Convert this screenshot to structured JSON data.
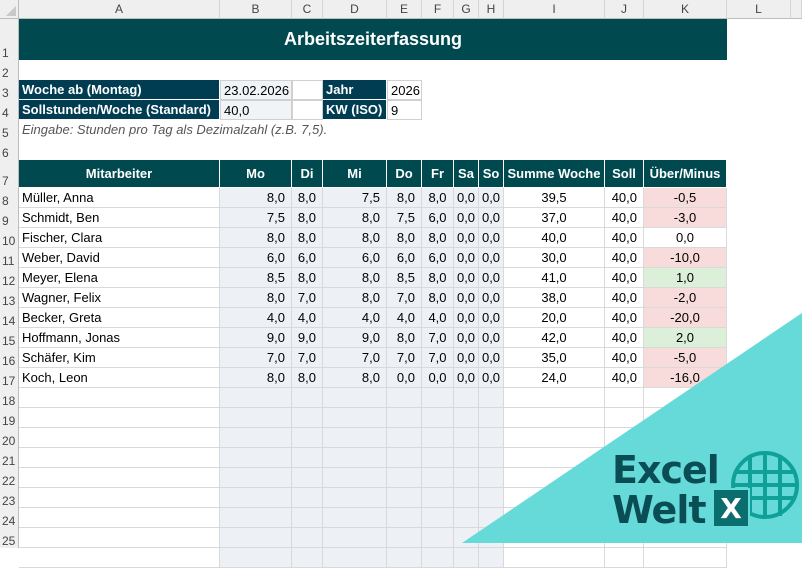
{
  "columns": [
    "A",
    "B",
    "C",
    "D",
    "E",
    "F",
    "G",
    "H",
    "I",
    "J",
    "K",
    "L"
  ],
  "rows": [
    "1",
    "2",
    "3",
    "4",
    "5",
    "6",
    "7",
    "8",
    "9",
    "10",
    "11",
    "12",
    "13",
    "14",
    "15",
    "16",
    "17",
    "18",
    "19",
    "20",
    "21",
    "22",
    "23",
    "24",
    "25"
  ],
  "title": "Arbeitszeiterfassung",
  "settings": {
    "week_label": "Woche ab (Montag)",
    "week_value": "23.02.2026",
    "target_label": "Sollstunden/Woche (Standard)",
    "target_value": "40,0",
    "year_label": "Jahr",
    "year_value": "2026",
    "kw_label": "KW (ISO)",
    "kw_value": "9"
  },
  "note": "Eingabe: Stunden pro Tag als Dezimalzahl (z.B. 7,5).",
  "table": {
    "headers": [
      "Mitarbeiter",
      "Mo",
      "Di",
      "Mi",
      "Do",
      "Fr",
      "Sa",
      "So",
      "Summe Woche",
      "Soll",
      "Über/Minus"
    ],
    "rows": [
      {
        "name": "Müller, Anna",
        "mo": "8,0",
        "di": "8,0",
        "mi": "7,5",
        "do": "8,0",
        "fr": "8,0",
        "sa": "0,0",
        "so": "0,0",
        "sum": "39,5",
        "soll": "40,0",
        "diff": "-0,5",
        "status": "neg"
      },
      {
        "name": "Schmidt, Ben",
        "mo": "7,5",
        "di": "8,0",
        "mi": "8,0",
        "do": "7,5",
        "fr": "6,0",
        "sa": "0,0",
        "so": "0,0",
        "sum": "37,0",
        "soll": "40,0",
        "diff": "-3,0",
        "status": "neg"
      },
      {
        "name": "Fischer, Clara",
        "mo": "8,0",
        "di": "8,0",
        "mi": "8,0",
        "do": "8,0",
        "fr": "8,0",
        "sa": "0,0",
        "so": "0,0",
        "sum": "40,0",
        "soll": "40,0",
        "diff": "0,0",
        "status": "zero"
      },
      {
        "name": "Weber, David",
        "mo": "6,0",
        "di": "6,0",
        "mi": "6,0",
        "do": "6,0",
        "fr": "6,0",
        "sa": "0,0",
        "so": "0,0",
        "sum": "30,0",
        "soll": "40,0",
        "diff": "-10,0",
        "status": "neg"
      },
      {
        "name": "Meyer, Elena",
        "mo": "8,5",
        "di": "8,0",
        "mi": "8,0",
        "do": "8,5",
        "fr": "8,0",
        "sa": "0,0",
        "so": "0,0",
        "sum": "41,0",
        "soll": "40,0",
        "diff": "1,0",
        "status": "pos"
      },
      {
        "name": "Wagner, Felix",
        "mo": "8,0",
        "di": "7,0",
        "mi": "8,0",
        "do": "7,0",
        "fr": "8,0",
        "sa": "0,0",
        "so": "0,0",
        "sum": "38,0",
        "soll": "40,0",
        "diff": "-2,0",
        "status": "neg"
      },
      {
        "name": "Becker, Greta",
        "mo": "4,0",
        "di": "4,0",
        "mi": "4,0",
        "do": "4,0",
        "fr": "4,0",
        "sa": "0,0",
        "so": "0,0",
        "sum": "20,0",
        "soll": "40,0",
        "diff": "-20,0",
        "status": "neg"
      },
      {
        "name": "Hoffmann, Jonas",
        "mo": "9,0",
        "di": "9,0",
        "mi": "9,0",
        "do": "8,0",
        "fr": "7,0",
        "sa": "0,0",
        "so": "0,0",
        "sum": "42,0",
        "soll": "40,0",
        "diff": "2,0",
        "status": "pos"
      },
      {
        "name": "Schäfer, Kim",
        "mo": "7,0",
        "di": "7,0",
        "mi": "7,0",
        "do": "7,0",
        "fr": "7,0",
        "sa": "0,0",
        "so": "0,0",
        "sum": "35,0",
        "soll": "40,0",
        "diff": "-5,0",
        "status": "neg"
      },
      {
        "name": "Koch, Leon",
        "mo": "8,0",
        "di": "8,0",
        "mi": "8,0",
        "do": "0,0",
        "fr": "0,0",
        "sa": "0,0",
        "so": "0,0",
        "sum": "24,0",
        "soll": "40,0",
        "diff": "-16,0",
        "status": "neg"
      }
    ]
  },
  "colors": {
    "header_bg": "#004a4f",
    "label_bg": "#003c52",
    "negative_bg": "#f8dcdc",
    "positive_bg": "#dcefd9",
    "input_bg": "#edf1f5",
    "logo_bg": "#66d9d9"
  },
  "logo": {
    "line1": "Excel",
    "line2": "Welt",
    "badge": "X"
  }
}
